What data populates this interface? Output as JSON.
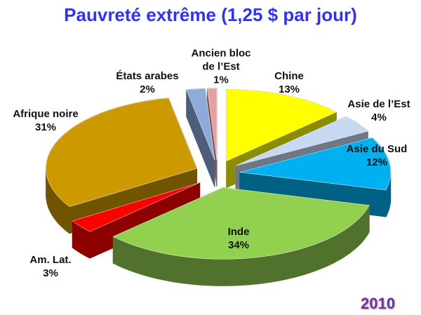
{
  "chart_data": {
    "type": "pie3d",
    "title": "Pauvreté extrême (1,25 $ par jour)",
    "categories": [
      "Chine",
      "Asie de l’Est",
      "Asie du Sud",
      "Inde",
      "Am. Lat.",
      "Afrique noire",
      "États arabes",
      "Ancien bloc de l’Est"
    ],
    "values": [
      13,
      4,
      12,
      34,
      3,
      31,
      2,
      1
    ],
    "value_labels": [
      "13%",
      "4%",
      "12%",
      "34%",
      "3%",
      "31%",
      "2%",
      "1%"
    ],
    "colors": [
      "#ffff00",
      "#c6d9f1",
      "#00b0f0",
      "#92d050",
      "#ff0000",
      "#cc9900",
      "#8eaadb",
      "#e6a0a0"
    ],
    "annotation": "2010"
  }
}
